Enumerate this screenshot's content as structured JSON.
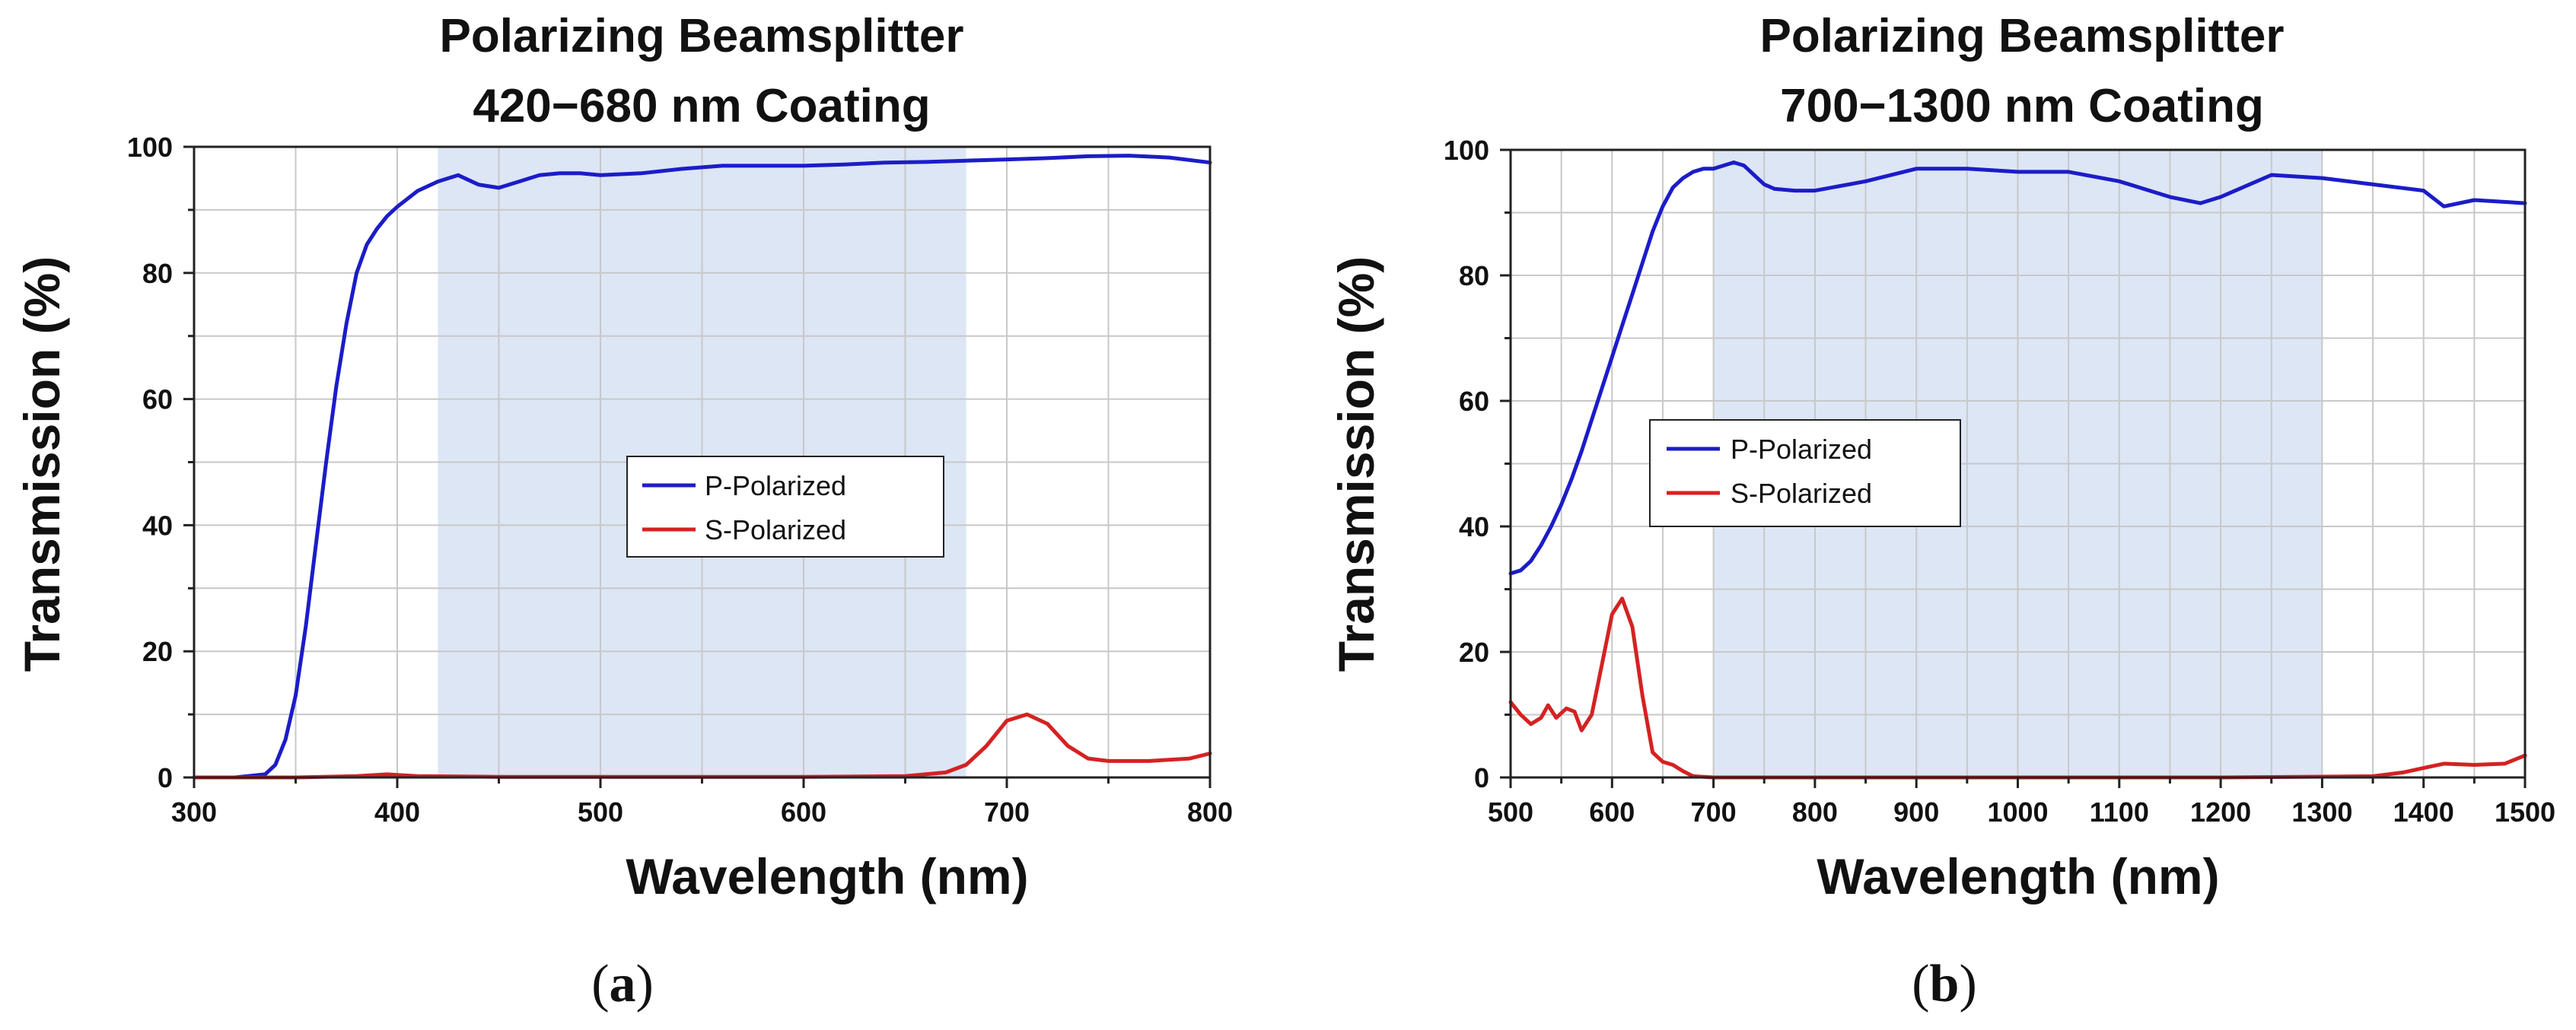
{
  "colors": {
    "p_polarized": "#1c1cc8",
    "s_polarized": "#d42222",
    "highlight_band": "#dde6f5",
    "grid": "#c8c8c8",
    "axis": "#222222"
  },
  "chart_data": [
    {
      "type": "line",
      "panel_label": "a",
      "title": "Polarizing Beamsplitter",
      "subtitle": "420−680 nm Coating",
      "xlabel": "Wavelength (nm)",
      "ylabel": "Transmission (%)",
      "xlim": [
        300,
        800
      ],
      "ylim": [
        0,
        100
      ],
      "xticks": [
        300,
        400,
        500,
        600,
        700,
        800
      ],
      "yticks": [
        0,
        20,
        40,
        60,
        80,
        100
      ],
      "x_minor_step": 50,
      "y_minor_step": 10,
      "grid": true,
      "highlight_range": [
        420,
        680
      ],
      "legend_position": "center",
      "series": [
        {
          "name": "P-Polarized",
          "color_key": "p_polarized",
          "x": [
            300,
            320,
            335,
            340,
            345,
            350,
            355,
            360,
            365,
            370,
            375,
            380,
            385,
            390,
            395,
            400,
            410,
            420,
            430,
            440,
            450,
            460,
            470,
            480,
            490,
            500,
            520,
            540,
            560,
            580,
            600,
            620,
            640,
            660,
            680,
            700,
            720,
            740,
            760,
            780,
            800
          ],
          "values": [
            0,
            0,
            0.5,
            2,
            6,
            13,
            24,
            37,
            50,
            62,
            72,
            80,
            84.5,
            87,
            89,
            90.5,
            93,
            94.5,
            95.5,
            94,
            93.5,
            94.5,
            95.5,
            95.8,
            95.8,
            95.5,
            95.8,
            96.5,
            97,
            97,
            97,
            97.2,
            97.5,
            97.6,
            97.8,
            98,
            98.2,
            98.5,
            98.6,
            98.3,
            97.5
          ]
        },
        {
          "name": "S-Polarized",
          "color_key": "s_polarized",
          "x": [
            300,
            350,
            380,
            395,
            410,
            450,
            500,
            600,
            650,
            670,
            680,
            690,
            700,
            710,
            720,
            730,
            740,
            750,
            770,
            790,
            800
          ],
          "values": [
            0,
            0,
            0.2,
            0.5,
            0.2,
            0.1,
            0.1,
            0.1,
            0.2,
            0.8,
            2,
            5,
            9,
            10,
            8.5,
            5,
            3,
            2.6,
            2.6,
            3,
            3.8
          ]
        }
      ]
    },
    {
      "type": "line",
      "panel_label": "b",
      "title": "Polarizing Beamsplitter",
      "subtitle": "700−1300 nm Coating",
      "xlabel": "Wavelength (nm)",
      "ylabel": "Transmission (%)",
      "xlim": [
        500,
        1500
      ],
      "ylim": [
        0,
        100
      ],
      "xticks": [
        500,
        600,
        700,
        800,
        900,
        1000,
        1100,
        1200,
        1300,
        1400,
        1500
      ],
      "yticks": [
        0,
        20,
        40,
        60,
        80,
        100
      ],
      "x_minor_step": 50,
      "y_minor_step": 10,
      "grid": true,
      "highlight_range": [
        700,
        1300
      ],
      "legend_position": "upper-left",
      "series": [
        {
          "name": "P-Polarized",
          "color_key": "p_polarized",
          "x": [
            500,
            510,
            520,
            530,
            540,
            550,
            560,
            570,
            580,
            590,
            600,
            610,
            620,
            630,
            640,
            650,
            660,
            670,
            680,
            690,
            700,
            710,
            720,
            730,
            740,
            750,
            760,
            780,
            800,
            850,
            900,
            950,
            1000,
            1050,
            1100,
            1150,
            1180,
            1200,
            1250,
            1300,
            1350,
            1400,
            1420,
            1450,
            1500
          ],
          "values": [
            32.5,
            33,
            34.5,
            37,
            40,
            43.5,
            47.5,
            52,
            57,
            62,
            67,
            72,
            77,
            82,
            87,
            91,
            94,
            95.5,
            96.5,
            97,
            97,
            97.5,
            98,
            97.5,
            96,
            94.5,
            93.8,
            93.5,
            93.5,
            95,
            97,
            97,
            96.5,
            96.5,
            95,
            92.5,
            91.5,
            92.5,
            96,
            95.5,
            94.5,
            93.5,
            91,
            92,
            91.5
          ]
        },
        {
          "name": "S-Polarized",
          "color_key": "s_polarized",
          "x": [
            500,
            510,
            520,
            530,
            537,
            545,
            555,
            563,
            570,
            580,
            590,
            600,
            610,
            620,
            630,
            640,
            650,
            660,
            670,
            680,
            700,
            800,
            1000,
            1200,
            1350,
            1380,
            1400,
            1420,
            1450,
            1480,
            1500
          ],
          "values": [
            12,
            10,
            8.5,
            9.5,
            11.5,
            9.5,
            11,
            10.5,
            7.5,
            10,
            18,
            26,
            28.5,
            24,
            13,
            4,
            2.5,
            2,
            1,
            0.2,
            0,
            0,
            0,
            0,
            0.2,
            0.8,
            1.5,
            2.2,
            2,
            2.2,
            3.5
          ]
        }
      ]
    }
  ]
}
